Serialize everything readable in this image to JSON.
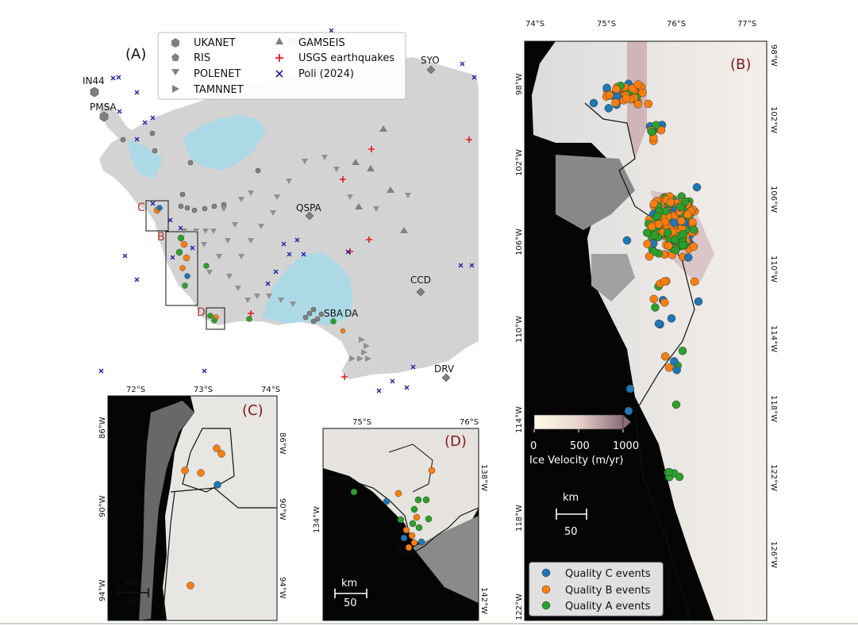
{
  "panels": {
    "A": "(A)",
    "B": "(B)",
    "C": "(C)",
    "D": "(D)"
  },
  "legend_networks": [
    {
      "label": "UKANET",
      "symbol": "hexagon-icon"
    },
    {
      "label": "RIS",
      "symbol": "pentagon-icon"
    },
    {
      "label": "POLENET",
      "symbol": "triangle-down-icon"
    },
    {
      "label": "TAMNNET",
      "symbol": "triangle-right-icon"
    },
    {
      "label": "GAMSEIS",
      "symbol": "triangle-up-icon"
    },
    {
      "label": "USGS earthquakes",
      "symbol": "plus-icon",
      "color": "#e31a1c"
    },
    {
      "label": "Poli (2024)",
      "symbol": "x-icon",
      "color": "#1f1fa8"
    }
  ],
  "stations": {
    "IN44": "IN44",
    "PMSA": "PMSA",
    "SYO": "SYO",
    "SNAA": "SN",
    "QSPA": "QSPA",
    "CCD": "CCD",
    "SBA": "SBA",
    "VNDA": "DA",
    "DRV": "DRV"
  },
  "box_labels": {
    "C": "C",
    "B": "B",
    "D": "D"
  },
  "panel_B": {
    "top_ticks": [
      "74°S",
      "75°S",
      "76°S",
      "77°S"
    ],
    "right_ticks": [
      "98°W",
      "102°W",
      "106°W",
      "110°W",
      "114°W",
      "118°W",
      "122°W",
      "126°W"
    ],
    "left_ticks": [
      "98°W",
      "102°W",
      "106°W",
      "110°W",
      "114°W",
      "118°W",
      "122°W"
    ],
    "colorbar": {
      "label": "Ice Velocity (m/yr)",
      "ticks": [
        "0",
        "500",
        "1000"
      ],
      "range": [
        0,
        1000
      ]
    },
    "scale": {
      "unit": "km",
      "value": "50"
    },
    "event_legend": [
      {
        "label": "Quality C events",
        "color": "#1f77b4"
      },
      {
        "label": "Quality B events",
        "color": "#ff7f0e"
      },
      {
        "label": "Quality A events",
        "color": "#2ca02c"
      }
    ]
  },
  "panel_C": {
    "top_ticks": [
      "72°S",
      "73°S",
      "74°S"
    ],
    "left_ticks": [
      "86°W",
      "90°W",
      "94°W"
    ],
    "right_ticks": [
      "86°W",
      "90°W",
      "94°W"
    ],
    "scale": {
      "unit": "km",
      "value": "50"
    }
  },
  "panel_D": {
    "top_ticks": [
      "75°S",
      "76°S"
    ],
    "left_ticks": [
      "134°W"
    ],
    "right_ticks": [
      "138°W",
      "142°W"
    ],
    "scale": {
      "unit": "km",
      "value": "50"
    }
  },
  "colors": {
    "quality_c": "#1f77b4",
    "quality_b": "#ff7f0e",
    "quality_a": "#2ca02c",
    "land": "#d3d3d3",
    "ice_shelf": "#add8e6",
    "ocean_dark": "#0a0a0a",
    "box_label": "#b03030"
  }
}
